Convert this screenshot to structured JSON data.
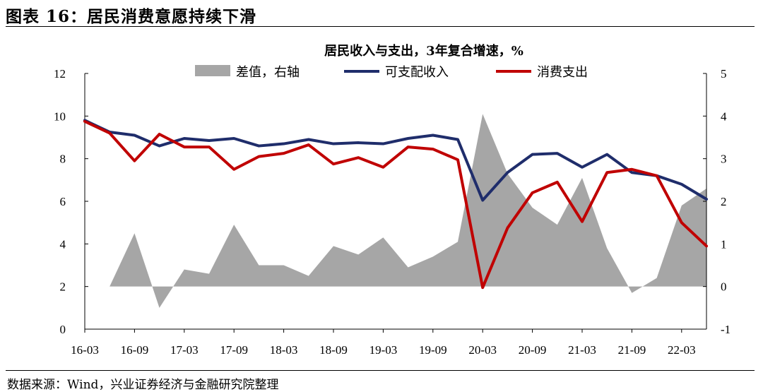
{
  "figure": {
    "header": "图表 16：居民消费意愿持续下滑",
    "source": "数据来源：Wind，兴业证券经济与金融研究院整理"
  },
  "chart_data": {
    "type": "line",
    "title": "居民收入与支出，3年复合增速，%",
    "x": [
      "16-03",
      "16-06",
      "16-09",
      "16-12",
      "17-03",
      "17-06",
      "17-09",
      "17-12",
      "18-03",
      "18-06",
      "18-09",
      "18-12",
      "19-03",
      "19-06",
      "19-09",
      "19-12",
      "20-03",
      "20-06",
      "20-09",
      "20-12",
      "21-03",
      "21-06",
      "21-09",
      "21-12",
      "22-03",
      "22-06"
    ],
    "x_tick_labels": [
      "16-03",
      "16-09",
      "17-03",
      "17-09",
      "18-03",
      "18-09",
      "19-03",
      "19-09",
      "20-03",
      "20-09",
      "21-03",
      "21-09",
      "22-03"
    ],
    "y_left": {
      "range": [
        0,
        12
      ],
      "ticks": [
        "0",
        "2",
        "4",
        "6",
        "8",
        "10",
        "12"
      ]
    },
    "y_right": {
      "range": [
        -1,
        5
      ],
      "ticks": [
        "-1",
        "0",
        "1",
        "2",
        "3",
        "4",
        "5"
      ]
    },
    "series": [
      {
        "name": "差值，右轴",
        "type": "area",
        "axis": "right",
        "color": "#a6a6a6",
        "values": [
          0.0,
          0.0,
          1.25,
          -0.5,
          0.4,
          0.3,
          1.45,
          0.5,
          0.5,
          0.25,
          0.95,
          0.75,
          1.15,
          0.45,
          0.7,
          1.05,
          4.05,
          2.65,
          1.85,
          1.45,
          2.55,
          0.9,
          -0.15,
          0.2,
          1.9,
          2.3
        ]
      },
      {
        "name": "可支配收入",
        "type": "line",
        "axis": "left",
        "color": "#1f2d6b",
        "values": [
          9.8,
          9.25,
          9.1,
          8.6,
          8.95,
          8.85,
          8.95,
          8.6,
          8.7,
          8.9,
          8.7,
          8.75,
          8.7,
          8.95,
          9.1,
          8.9,
          6.05,
          7.35,
          8.2,
          8.25,
          7.6,
          8.2,
          7.35,
          7.2,
          6.8,
          6.1
        ]
      },
      {
        "name": "消费支出",
        "type": "line",
        "axis": "left",
        "color": "#c00000",
        "values": [
          9.75,
          9.2,
          7.9,
          9.15,
          8.55,
          8.55,
          7.5,
          8.1,
          8.25,
          8.65,
          7.75,
          8.05,
          7.6,
          8.55,
          8.45,
          7.95,
          1.95,
          4.75,
          6.4,
          6.9,
          5.05,
          7.35,
          7.5,
          7.2,
          5.0,
          3.9
        ]
      }
    ],
    "legend": "top-center"
  }
}
